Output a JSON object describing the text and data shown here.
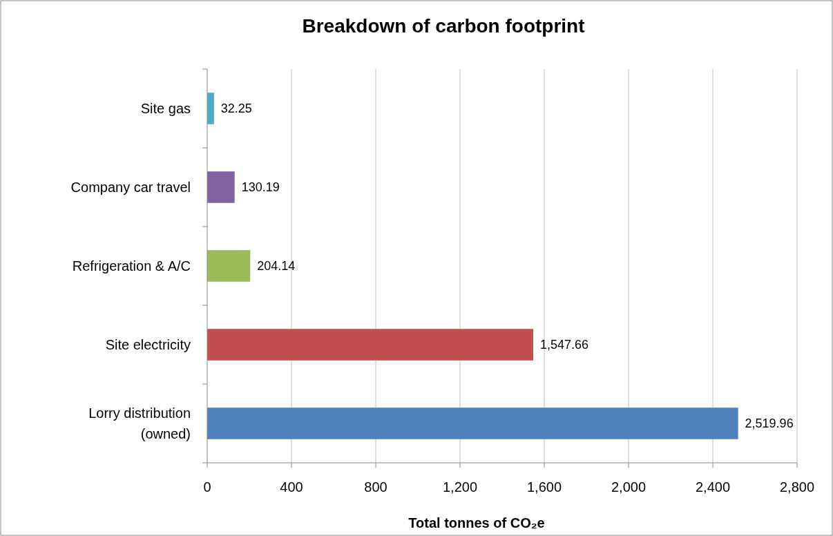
{
  "chart_data": {
    "type": "bar",
    "orientation": "horizontal",
    "title": "Breakdown of carbon footprint",
    "xlabel": "Total tonnes of CO₂e",
    "categories": [
      "Site gas",
      "Company car travel",
      "Refrigeration & A/C",
      "Site electricity",
      "Lorry distribution (owned)"
    ],
    "values": [
      32.25,
      130.19,
      204.14,
      1547.66,
      2519.96
    ],
    "colors": [
      "#4bacc6",
      "#8064a2",
      "#9bbb59",
      "#c0504d",
      "#4f81bd"
    ],
    "value_labels": [
      "32.25",
      "130.19",
      "204.14",
      "1,547.66",
      "2,519.96"
    ],
    "xlim": [
      0,
      2800
    ],
    "xticks": [
      0,
      400,
      800,
      {
        "value": 1200,
        "label": "1,200"
      },
      {
        "value": 1600,
        "label": "1,600"
      },
      {
        "value": 2000,
        "label": "2,000"
      },
      {
        "value": 2400,
        "label": "2,400"
      },
      {
        "value": 2800,
        "label": "2,800"
      }
    ],
    "grid": "x"
  }
}
